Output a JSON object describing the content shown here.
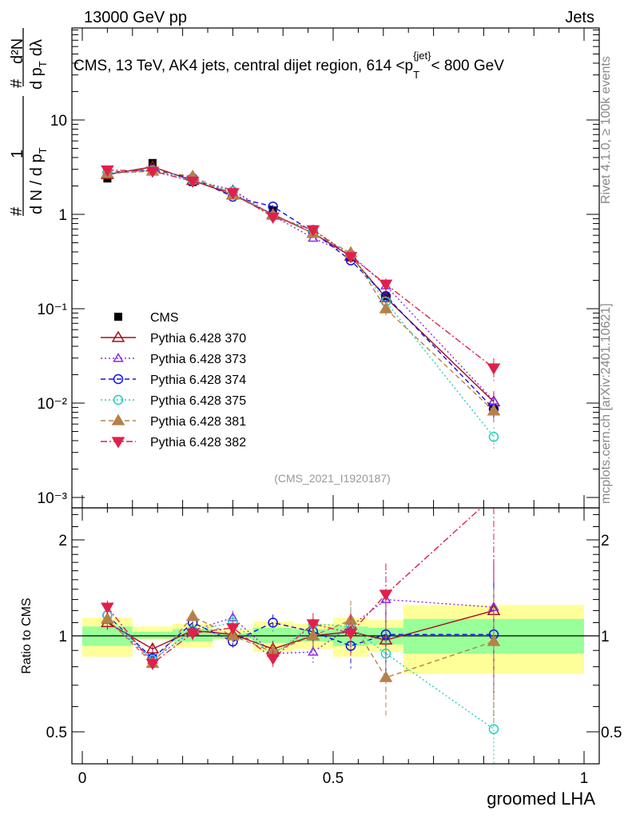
{
  "header": {
    "left": "13000 GeV pp",
    "right": "Jets"
  },
  "side_labels": {
    "rivet": "Rivet 4.1.0, ≥ 100k events",
    "mcplots": "mcplots.cern.ch [arXiv:2401.10621]"
  },
  "chart_data": [
    {
      "type": "line",
      "panel": "main",
      "title": "CMS, 13 TeV, AK4 jets, central dijet region, 614 <p",
      "title_sub": "T",
      "title_sup": "{jet}",
      "title_end": "< 800 GeV",
      "ylabel_num_a": "1",
      "ylabel_den_a": "d N / d p",
      "ylabel_num_b": "d²N",
      "ylabel_den_b": "d p",
      "ylabel_den_b_end": "dλ",
      "ylabel_sub": "T",
      "ylabel_hash": "#",
      "yscale": "log",
      "ylim": [
        0.00085,
        26
      ],
      "xlim": [
        -0.02,
        1.03
      ],
      "yticks": [
        {
          "v": 10,
          "label": "10"
        },
        {
          "v": 1,
          "label": "1"
        },
        {
          "v": 0.1,
          "label": "10⁻¹"
        },
        {
          "v": 0.01,
          "label": "10⁻²"
        },
        {
          "v": 0.001,
          "label": "10⁻³"
        }
      ],
      "annotation": "(CMS_2021_I1920187)",
      "legend_placement": "left-middle",
      "x": [
        0.05,
        0.14,
        0.22,
        0.3,
        0.38,
        0.46,
        0.535,
        0.605,
        0.82
      ],
      "reference": {
        "name": "CMS",
        "values": [
          2.4,
          3.5,
          2.2,
          1.6,
          1.1,
          0.63,
          0.35,
          0.135,
          0.0086
        ],
        "color": "#000000",
        "marker": "square"
      },
      "series": [
        {
          "name": "Pythia 6.428 370",
          "color": "#a0101e",
          "marker": "tri-up-open",
          "dash": "",
          "ratio": [
            1.1,
            0.91,
            1.04,
            1.01,
            0.91,
            1.0,
            1.03,
            0.97,
            1.2
          ]
        },
        {
          "name": "Pythia 6.428 373",
          "color": "#8a2be2",
          "marker": "tri-up-open-small",
          "dash": "2,3",
          "ratio": [
            1.12,
            0.84,
            1.04,
            1.14,
            0.88,
            0.89,
            1.07,
            1.3,
            1.23
          ]
        },
        {
          "name": "Pythia 6.428 374",
          "color": "#1010e0",
          "marker": "circle-open",
          "dash": "6,4",
          "ratio": [
            1.16,
            0.85,
            1.1,
            0.96,
            1.1,
            1.03,
            0.93,
            1.01,
            1.01
          ]
        },
        {
          "name": "Pythia 6.428 375",
          "color": "#20d0c0",
          "marker": "circle-open",
          "dash": "2,3",
          "ratio": [
            1.16,
            0.84,
            1.04,
            1.1,
            0.87,
            1.09,
            1.07,
            0.88,
            0.51
          ]
        },
        {
          "name": "Pythia 6.428 381",
          "color": "#b5814a",
          "marker": "tri-up-filled",
          "dash": "6,4",
          "ratio": [
            1.13,
            0.82,
            1.15,
            1.0,
            0.89,
            1.0,
            1.12,
            0.74,
            0.96
          ]
        },
        {
          "name": "Pythia 6.428 382",
          "color": "#e0204a",
          "marker": "tri-down-filled",
          "dash": "8,3,2,3",
          "ratio": [
            1.23,
            0.82,
            1.02,
            1.06,
            0.85,
            1.09,
            1.02,
            1.35,
            2.74
          ]
        }
      ],
      "rel_errors": [
        0.05,
        0.04,
        0.05,
        0.05,
        0.06,
        0.08,
        0.15,
        0.25,
        0.45
      ]
    },
    {
      "type": "line",
      "panel": "ratio",
      "ylabel": "Ratio to CMS",
      "xlabel": "groomed LHA",
      "yscale": "log",
      "ylim": [
        0.4,
        2.5
      ],
      "yticks": [
        {
          "v": 2,
          "label": "2"
        },
        {
          "v": 1,
          "label": "1"
        },
        {
          "v": 0.5,
          "label": "0.5"
        }
      ],
      "xticks": [
        {
          "v": 0,
          "label": "0"
        },
        {
          "v": 0.5,
          "label": "0.5"
        },
        {
          "v": 1,
          "label": "1"
        }
      ],
      "bins": [
        0,
        0.1,
        0.18,
        0.26,
        0.34,
        0.42,
        0.5,
        0.57,
        0.64,
        1.0
      ],
      "band_total": [
        [
          0.86,
          1.14
        ],
        [
          0.97,
          1.07
        ],
        [
          0.92,
          1.09
        ],
        [
          0.97,
          1.05
        ],
        [
          0.89,
          1.11
        ],
        [
          0.91,
          1.09
        ],
        [
          0.86,
          1.14
        ],
        [
          0.89,
          1.12
        ],
        [
          0.76,
          1.25
        ]
      ],
      "band_stat": [
        [
          0.93,
          1.07
        ],
        [
          0.98,
          1.03
        ],
        [
          0.96,
          1.05
        ],
        [
          0.98,
          1.02
        ],
        [
          0.95,
          1.06
        ],
        [
          0.96,
          1.05
        ],
        [
          0.93,
          1.07
        ],
        [
          0.94,
          1.06
        ],
        [
          0.88,
          1.13
        ]
      ],
      "band_colors": {
        "total": "#ffff99",
        "stat": "#99ff99"
      }
    }
  ]
}
